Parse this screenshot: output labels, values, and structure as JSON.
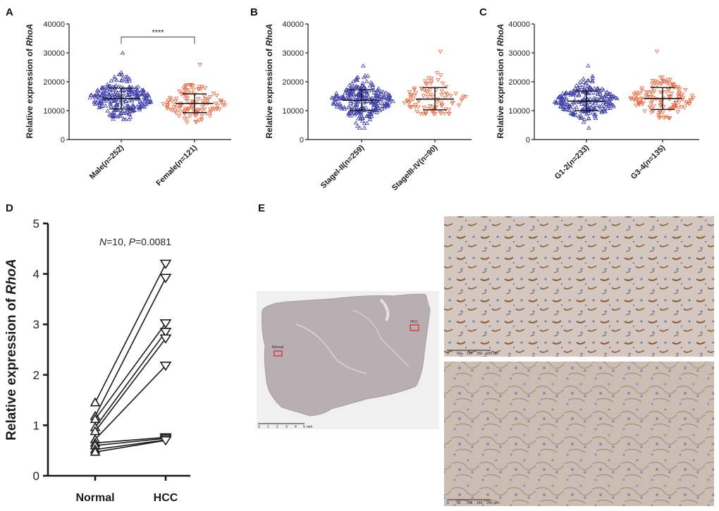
{
  "colors": {
    "group1": "#3a3aa8",
    "group2": "#e8673f",
    "axis": "#1a1a1a",
    "roi": "#e02020",
    "tissue_section": "#b7aeb1",
    "ihc_background": "#cfc3bb",
    "ihc_stain": "#8a5a3a"
  },
  "chart_data": [
    {
      "panel": "A",
      "type": "scatter",
      "ylabel_prefix": "Relative expression of ",
      "ylabel_gene": "RhoA",
      "ylim": [
        0,
        40000
      ],
      "yticks": [
        "0",
        "10000",
        "20000",
        "30000",
        "40000"
      ],
      "categories": [
        {
          "label_pre": "Male(",
          "label_n": "n",
          "label_post": "=252)",
          "n": 252,
          "mean": 14200,
          "sd_low": 10600,
          "sd_high": 17800,
          "min": 7000,
          "max": 30000,
          "spread": 3600,
          "marker": "triangle-up",
          "color": "#3a3aa8"
        },
        {
          "label_pre": "Female(",
          "label_n": "n",
          "label_post": "=121)",
          "n": 121,
          "mean": 12500,
          "sd_low": 9300,
          "sd_high": 15800,
          "min": 6000,
          "max": 26000,
          "spread": 3300,
          "marker": "triangle-down",
          "color": "#e8673f"
        }
      ],
      "significance": {
        "label": "****",
        "between": [
          0,
          1
        ],
        "y": 35500
      }
    },
    {
      "panel": "B",
      "type": "scatter",
      "ylabel_prefix": "Relative expression of ",
      "ylabel_gene": "RhoA",
      "ylim": [
        0,
        40000
      ],
      "yticks": [
        "0",
        "10000",
        "20000",
        "30000",
        "40000"
      ],
      "categories": [
        {
          "label_pre": "StageI-II(",
          "label_n": "",
          "label_post": "n=259)",
          "n": 259,
          "mean": 13600,
          "sd_low": 10100,
          "sd_high": 17200,
          "min": 4000,
          "max": 25500,
          "spread": 3500,
          "marker": "triangle-up",
          "color": "#3a3aa8"
        },
        {
          "label_pre": "StageIII-IV(",
          "label_n": "",
          "label_post": "n=90)",
          "n": 90,
          "mean": 14000,
          "sd_low": 10300,
          "sd_high": 18000,
          "min": 9000,
          "max": 30500,
          "spread": 3800,
          "marker": "triangle-down",
          "color": "#e8673f"
        }
      ]
    },
    {
      "panel": "C",
      "type": "scatter",
      "ylabel_prefix": "Relative expression of ",
      "ylabel_gene": "RhoA",
      "ylim": [
        0,
        40000
      ],
      "yticks": [
        "0",
        "10000",
        "20000",
        "30000",
        "40000"
      ],
      "categories": [
        {
          "label_pre": "G1-2(",
          "label_n": "n",
          "label_post": "=233)",
          "n": 233,
          "mean": 13300,
          "sd_low": 10000,
          "sd_high": 16800,
          "min": 4000,
          "max": 25500,
          "spread": 3300,
          "marker": "triangle-up",
          "color": "#3a3aa8"
        },
        {
          "label_pre": "G3-4(",
          "label_n": "n",
          "label_post": "=135)",
          "n": 135,
          "mean": 14200,
          "sd_low": 10400,
          "sd_high": 18000,
          "min": 7500,
          "max": 30500,
          "spread": 3800,
          "marker": "triangle-down",
          "color": "#e8673f"
        }
      ]
    },
    {
      "panel": "D",
      "type": "line",
      "ylabel_prefix": "Relative expression of ",
      "ylabel_gene": "RhoA",
      "ylim": [
        0,
        5
      ],
      "yticks": [
        "0",
        "1",
        "2",
        "3",
        "4",
        "5"
      ],
      "categories": [
        "Normal",
        "HCC"
      ],
      "annotation": {
        "N_label": "N",
        "N_value": "=10, ",
        "P_label": "P",
        "P_value": "=0.0081"
      },
      "pairs": [
        [
          1.45,
          4.2
        ],
        [
          1.18,
          3.92
        ],
        [
          1.12,
          3.02
        ],
        [
          0.96,
          2.85
        ],
        [
          0.88,
          2.72
        ],
        [
          0.72,
          2.18
        ],
        [
          0.65,
          0.76
        ],
        [
          0.6,
          0.74
        ],
        [
          0.52,
          0.71
        ],
        [
          0.47,
          0.7
        ]
      ]
    }
  ],
  "panel_e": {
    "label": "E",
    "overview": {
      "label_normal": "Normal",
      "label_hcc": "HCC",
      "scale_ticks": [
        "0",
        "1",
        "2",
        "3",
        "4",
        "5"
      ],
      "scale_unit": "mm"
    },
    "zoom_top": {
      "scale_ticks": [
        "0",
        "50",
        "100",
        "150",
        "200"
      ],
      "scale_unit": "µm"
    },
    "zoom_bottom": {
      "scale_ticks": [
        "0",
        "50",
        "100",
        "150",
        "200"
      ],
      "scale_unit": "µm"
    }
  }
}
